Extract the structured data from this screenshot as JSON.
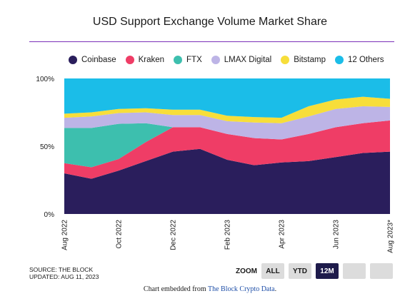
{
  "chart_data": {
    "type": "area",
    "stacked": true,
    "title": "USD Support Exchange Volume Market Share",
    "x": [
      "Aug 2022",
      "Sep 2022",
      "Oct 2022",
      "Nov 2022",
      "Dec 2022",
      "Jan 2023",
      "Feb 2023",
      "Mar 2023",
      "Apr 2023",
      "May 2023",
      "Jun 2023",
      "Jul 2023",
      "Aug 2023*"
    ],
    "xticks": [
      "Aug 2022",
      "Oct 2022",
      "Dec 2022",
      "Feb 2023",
      "Apr 2023",
      "Jun 2023",
      "Aug 2023*"
    ],
    "yticks": [
      "0%",
      "50%",
      "100%"
    ],
    "ylim": [
      0,
      100
    ],
    "series": [
      {
        "name": "Coinbase",
        "color": "#2a1e5c",
        "values": [
          30,
          26,
          32,
          39,
          46,
          48,
          40,
          36,
          38,
          39,
          42,
          45,
          46
        ]
      },
      {
        "name": "Kraken",
        "color": "#ef3d66",
        "values": [
          7.5,
          8.5,
          8.5,
          14,
          18,
          16,
          19,
          20,
          17,
          20,
          22,
          22,
          23
        ]
      },
      {
        "name": "FTX",
        "color": "#3dbfae",
        "values": [
          26,
          29,
          26,
          14,
          0,
          0,
          0,
          0,
          0,
          0,
          0,
          0,
          0
        ]
      },
      {
        "name": "LMAX Digital",
        "color": "#bdb4e6",
        "values": [
          7.5,
          8.5,
          8,
          8,
          9,
          9,
          9.5,
          11.5,
          12,
          13,
          13.5,
          12.5,
          10
        ]
      },
      {
        "name": "Bitstamp",
        "color": "#f7de3a",
        "values": [
          3,
          3,
          3,
          3,
          4,
          4,
          4,
          4,
          4,
          7.5,
          7,
          7,
          6
        ]
      },
      {
        "name": "12 Others",
        "color": "#1bbde8",
        "values": [
          26,
          25,
          22.5,
          22,
          23,
          23,
          27.5,
          28.5,
          29,
          20.5,
          15.5,
          13.5,
          15
        ]
      }
    ]
  },
  "source": {
    "line1": "SOURCE: THE BLOCK",
    "line2": "UPDATED: AUG 11, 2023"
  },
  "zoom": {
    "label": "ZOOM",
    "buttons": [
      "ALL",
      "YTD",
      "12M",
      "",
      ""
    ],
    "active": "12M"
  },
  "embed": {
    "prefix": "Chart embedded from ",
    "link": "The Block Crypto Data",
    "suffix": "."
  }
}
